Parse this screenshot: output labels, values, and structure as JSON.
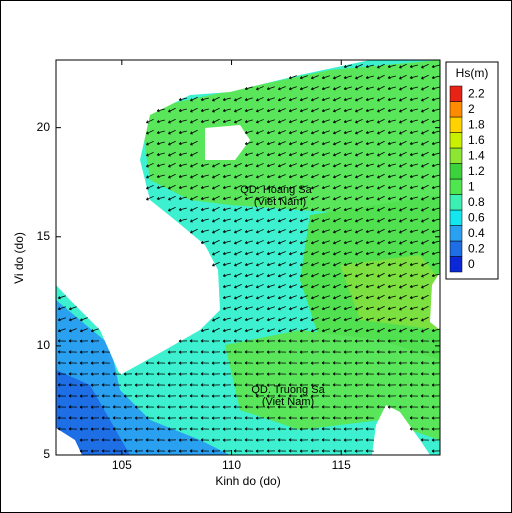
{
  "chart_data": {
    "type": "map",
    "x_label": "Kinh do (do)",
    "y_label": "Vi do (do)",
    "xlim": [
      102,
      119.5
    ],
    "ylim": [
      5,
      23.1
    ],
    "xticks": [
      105,
      110,
      115
    ],
    "yticks": [
      5,
      10,
      15,
      20
    ],
    "colorbar": {
      "title": "Hs(m)",
      "levels": [
        0,
        0.2,
        0.4,
        0.6,
        0.8,
        1,
        1.2,
        1.4,
        1.6,
        1.8,
        2,
        2.2
      ],
      "colors": [
        "#0a28d8",
        "#1e6ee6",
        "#2aa0f0",
        "#14e6f0",
        "#3cf0b4",
        "#50e650",
        "#3cd23c",
        "#8ce632",
        "#c8f000",
        "#ffd200",
        "#ff8c00",
        "#e62314"
      ]
    },
    "annotations": [
      {
        "lines": [
          "QD. Hoang Sa",
          "(Viet Nam)"
        ]
      },
      {
        "lines": [
          "QD. Truong Sa",
          "(Viet Nam)"
        ]
      }
    ]
  }
}
